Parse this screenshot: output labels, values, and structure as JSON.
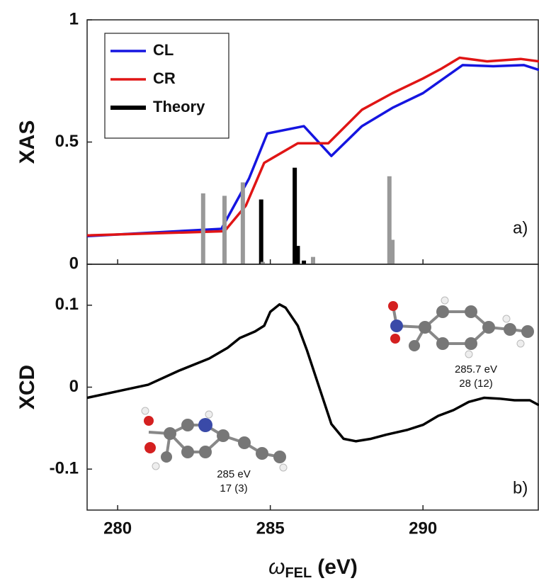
{
  "chart_data": [
    {
      "type": "line",
      "ylabel": "XAS",
      "xlim": [
        279,
        293.8
      ],
      "ylim": [
        0,
        1
      ],
      "xticks": [
        280,
        285,
        290
      ],
      "yticks": [
        0,
        0.5,
        1
      ],
      "show_xtick_labels": false,
      "legend": "upper left",
      "annotations": [
        "a)"
      ],
      "series": [
        {
          "name": "CL",
          "type": "line",
          "color": "#1515e0",
          "x": [
            279,
            283.4,
            284.3,
            284.9,
            286.1,
            287.0,
            288.0,
            289.0,
            290.0,
            291.3,
            292.3,
            293.3,
            293.8
          ],
          "values": [
            0.115,
            0.145,
            0.35,
            0.535,
            0.565,
            0.443,
            0.565,
            0.64,
            0.7,
            0.815,
            0.81,
            0.815,
            0.795
          ]
        },
        {
          "name": "CR",
          "type": "line",
          "color": "#e01515",
          "x": [
            279,
            283.5,
            284.2,
            284.8,
            285.9,
            286.9,
            288.0,
            289.0,
            290.0,
            290.6,
            291.2,
            292.1,
            293.2,
            293.8
          ],
          "values": [
            0.118,
            0.135,
            0.24,
            0.415,
            0.495,
            0.495,
            0.632,
            0.7,
            0.76,
            0.8,
            0.845,
            0.83,
            0.84,
            0.83
          ]
        },
        {
          "name": "Theory",
          "type": "bar",
          "color": "#000000",
          "x": [
            284.7,
            285.8,
            285.9,
            286.1
          ],
          "values": [
            0.265,
            0.395,
            0.075,
            0.015
          ]
        },
        {
          "type": "bar",
          "color": "#999999",
          "x": [
            282.8,
            283.5,
            284.1,
            284.75,
            286.4,
            288.9,
            289.0
          ],
          "values": [
            0.29,
            0.28,
            0.335,
            0.01,
            0.03,
            0.36,
            0.1
          ]
        }
      ]
    },
    {
      "type": "line",
      "ylabel": "XCD",
      "xlabel": [
        "ω",
        "FEL",
        "(eV)"
      ],
      "xlim": [
        279,
        293.8
      ],
      "ylim": [
        -0.15,
        0.15
      ],
      "xticks": [
        280,
        285,
        290
      ],
      "yticks": [
        -0.1,
        0,
        0.1
      ],
      "show_xtick_labels": true,
      "annotations": [
        "b)",
        "285.7 eV",
        "28 (12)",
        "285 eV",
        "17 (3)"
      ],
      "series": [
        {
          "type": "line",
          "color": "#000000",
          "x": [
            279,
            280,
            281,
            282,
            283,
            283.6,
            284,
            284.5,
            284.8,
            285.0,
            285.3,
            285.5,
            285.9,
            286.2,
            286.6,
            287.0,
            287.4,
            287.8,
            288.3,
            288.8,
            289.5,
            290,
            290.5,
            291.0,
            291.5,
            292,
            292.5,
            293,
            293.5,
            293.8
          ],
          "values": [
            -0.013,
            -0.005,
            0.003,
            0.02,
            0.035,
            0.048,
            0.06,
            0.068,
            0.075,
            0.092,
            0.101,
            0.097,
            0.075,
            0.045,
            0.0,
            -0.045,
            -0.063,
            -0.066,
            -0.063,
            -0.058,
            -0.052,
            -0.046,
            -0.035,
            -0.028,
            -0.018,
            -0.013,
            -0.014,
            -0.016,
            -0.016,
            -0.022
          ]
        }
      ]
    }
  ]
}
